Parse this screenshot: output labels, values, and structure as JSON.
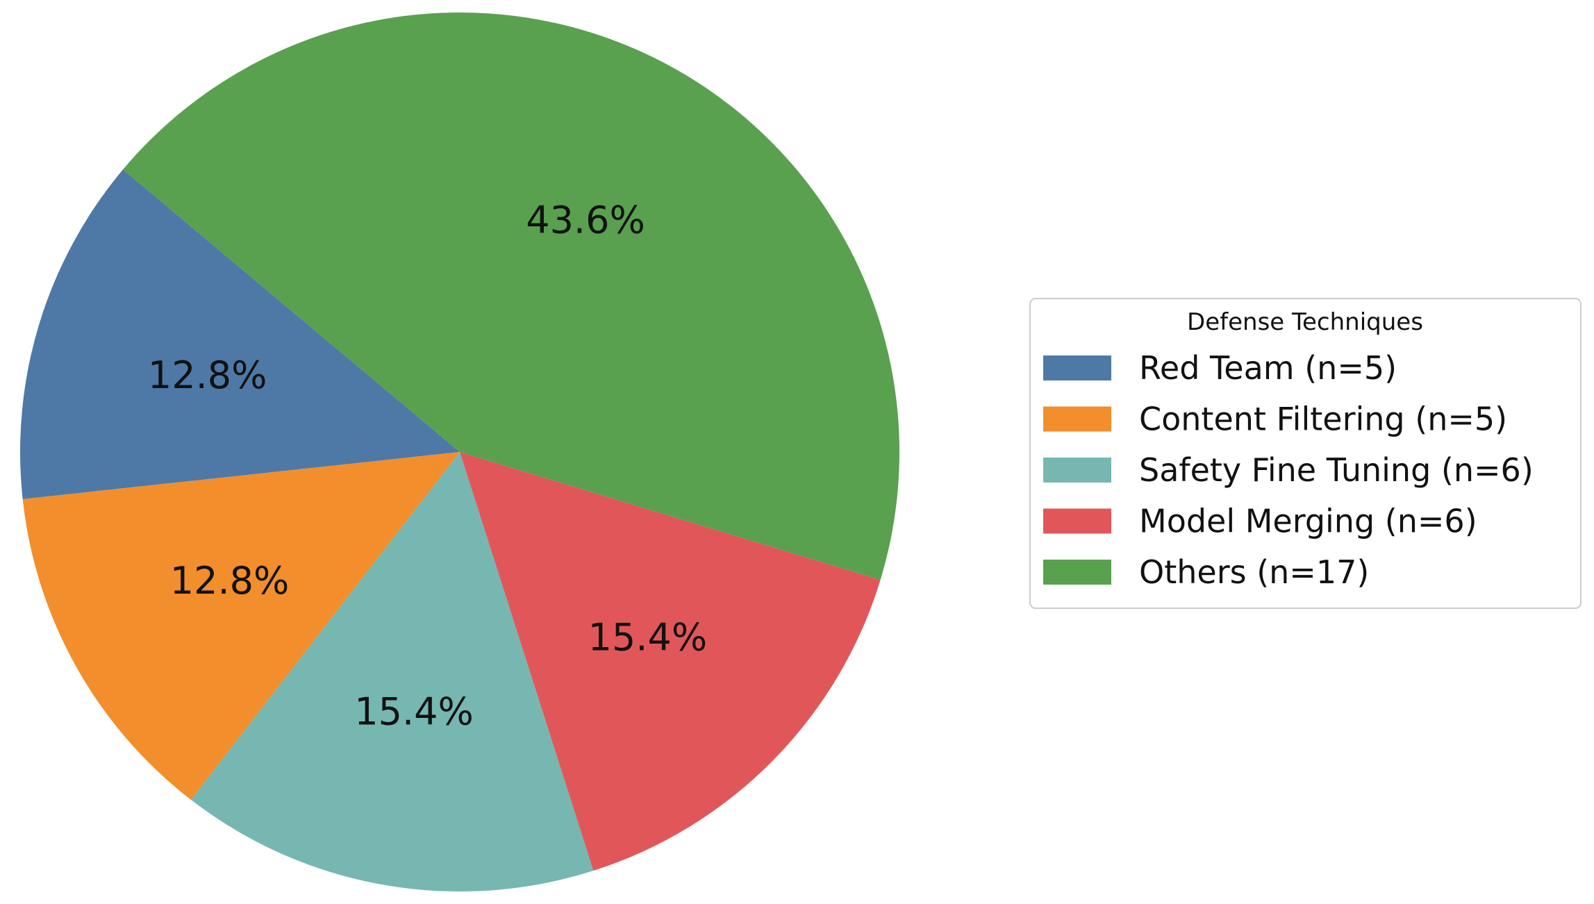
{
  "chart_data": {
    "type": "pie",
    "title": "",
    "legend": {
      "title": "Defense Techniques",
      "placement": "right"
    },
    "slices": [
      {
        "label": "Red Team (n=5)",
        "value": 5,
        "percent_label": "12.8%",
        "color": "#4e79a7"
      },
      {
        "label": "Content Filtering (n=5)",
        "value": 5,
        "percent_label": "12.8%",
        "color": "#f28e2b"
      },
      {
        "label": "Safety Fine Tuning (n=6)",
        "value": 6,
        "percent_label": "15.4%",
        "color": "#76b7b2"
      },
      {
        "label": "Model Merging (n=6)",
        "value": 6,
        "percent_label": "15.4%",
        "color": "#e15759"
      },
      {
        "label": "Others (n=17)",
        "value": 17,
        "percent_label": "43.6%",
        "color": "#59a14f"
      }
    ],
    "start_angle_deg": 140,
    "direction": "counterclockwise"
  }
}
